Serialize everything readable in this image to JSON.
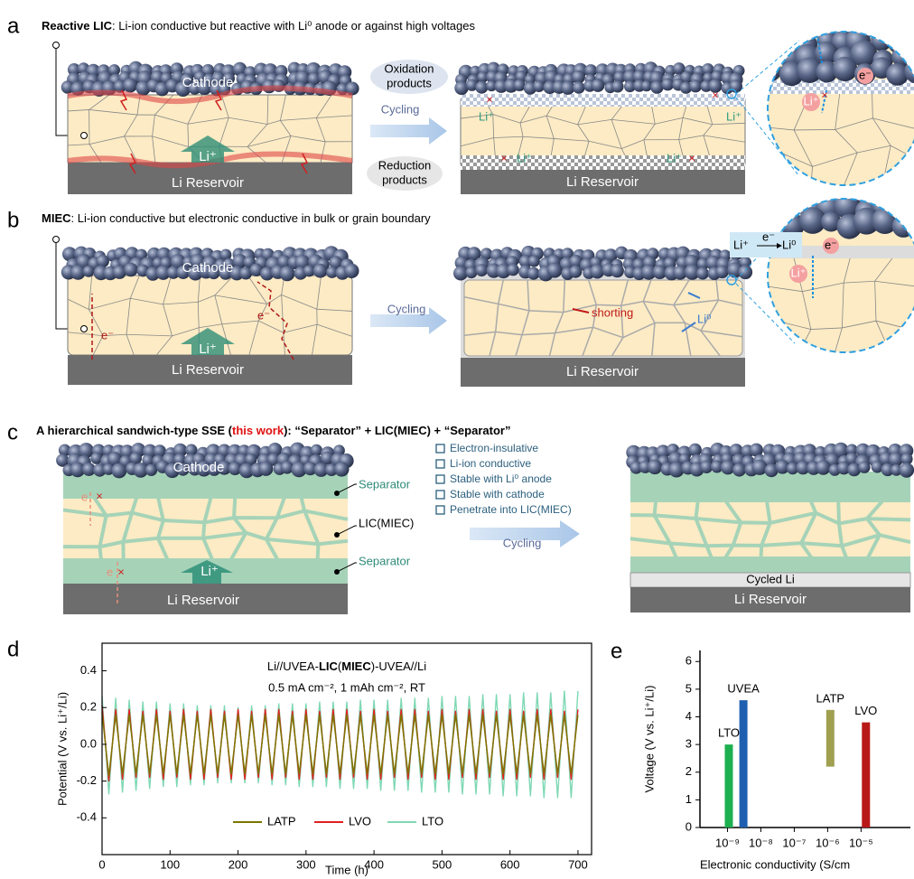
{
  "panel_a": {
    "label": "a",
    "title_bold": "Reactive LIC",
    "title_rest": ": Li-ion conductive but reactive with Li⁰ anode or against high voltages",
    "cathode": "Cathode",
    "li_ion": "Li⁺",
    "reservoir": "Li Reservoir",
    "oxidation": [
      "Oxidation",
      "products"
    ],
    "reduction": [
      "Reduction",
      "products"
    ],
    "cycling": "Cycling",
    "li_ion_labels": [
      "Li⁺",
      "Li⁺",
      "Li⁺",
      "Li⁺"
    ],
    "reservoir_after": "Li Reservoir",
    "zoom_electron": "e⁻",
    "zoom_li": "Li⁺"
  },
  "panel_b": {
    "label": "b",
    "title_bold": "MIEC",
    "title_rest": ": Li-ion conductive but electronic conductive in bulk or grain boundary",
    "cathode": "Cathode",
    "electrons": [
      "e⁻",
      "e⁻"
    ],
    "li_ion": "Li⁺",
    "reservoir": "Li Reservoir",
    "cycling": "Cycling",
    "shorting": "shorting",
    "li_metal": "Li⁰",
    "reservoir_after": "Li Reservoir",
    "reaction": [
      "Li⁺",
      "e⁻",
      "Li⁰"
    ],
    "zoom_electron": "e⁻",
    "zoom_li": "Li⁺"
  },
  "panel_c": {
    "label": "c",
    "title_parts": [
      "A hierarchical sandwich-type SSE (",
      "this work",
      "): “Separator” + LIC(MIEC) + “Separator”"
    ],
    "cathode": "Cathode",
    "separator_top": "Separator",
    "lic": "LIC(MIEC)",
    "separator_bottom": "Separator",
    "li_ion": "Li⁺",
    "reservoir": "Li Reservoir",
    "electrons": [
      "e",
      "e"
    ],
    "checklist": [
      "Electron-insulative",
      "Li-ion conductive",
      "Stable with Li⁰ anode",
      "Stable with cathode",
      "Penetrate into LIC(MIEC)"
    ],
    "cycling": "Cycling",
    "cycled_li": "Cycled Li",
    "reservoir_after": "Li Reservoir"
  },
  "chart_data": [
    {
      "label": "d",
      "type": "line",
      "annotation_parts": [
        {
          "text": "Li//UVEA-",
          "bold": false
        },
        {
          "text": "LIC",
          "bold": true
        },
        {
          "text": "(",
          "bold": false
        },
        {
          "text": "MIEC",
          "bold": true
        },
        {
          "text": ")-UVEA//Li",
          "bold": false
        }
      ],
      "subtitle": "0.5 mA cm⁻², 1 mAh cm⁻², RT",
      "xlabel": "Time (h)",
      "ylabel": "Potential (V vs. Li⁺/Li)",
      "x": [
        0,
        10,
        20,
        30,
        40,
        50,
        60,
        70,
        80,
        90,
        100,
        110,
        120,
        130,
        140,
        150,
        160,
        170,
        180,
        190,
        200,
        210,
        220,
        230,
        240,
        250,
        260,
        270,
        280,
        290,
        300,
        310,
        320,
        330,
        340,
        350,
        360,
        370,
        380,
        390,
        400,
        410,
        420,
        430,
        440,
        450,
        460,
        470,
        480,
        490,
        500,
        510,
        520,
        530,
        540,
        550,
        560,
        570,
        580,
        590,
        600,
        610,
        620,
        630,
        640,
        650,
        660,
        670,
        680,
        690,
        700
      ],
      "series": [
        {
          "name": "LATP",
          "color": "#7a7600",
          "values": [
            0.17,
            -0.17,
            0.16,
            -0.16,
            0.16,
            -0.16,
            0.16,
            -0.16,
            0.16,
            -0.16,
            0.16,
            -0.16,
            0.16,
            -0.16,
            0.16,
            -0.16,
            0.16,
            -0.16,
            0.16,
            -0.16,
            0.16,
            -0.16,
            0.16,
            -0.16,
            0.16,
            -0.16,
            0.16,
            -0.16,
            0.16,
            -0.16,
            0.16,
            -0.16,
            0.16,
            -0.16,
            0.16,
            -0.16,
            0.16,
            -0.16,
            0.16,
            -0.16,
            0.16,
            -0.16,
            0.16,
            -0.16,
            0.16,
            -0.16,
            0.16,
            -0.16,
            0.16,
            -0.16,
            0.16,
            -0.16,
            0.16,
            -0.16,
            0.16,
            -0.16,
            0.16,
            -0.16,
            0.16,
            -0.16,
            0.16,
            -0.16,
            0.16,
            -0.16,
            0.16,
            -0.16,
            0.16,
            -0.16,
            0.16,
            -0.16,
            0.16
          ]
        },
        {
          "name": "LVO",
          "color": "#e02020",
          "values": [
            0.21,
            -0.2,
            0.19,
            -0.19,
            0.19,
            -0.18,
            0.18,
            -0.18,
            0.19,
            -0.19,
            0.18,
            -0.18,
            0.19,
            -0.19,
            0.18,
            -0.19,
            0.19,
            -0.18,
            0.18,
            -0.19,
            0.19,
            -0.19,
            0.18,
            -0.18,
            0.19,
            -0.19,
            0.19,
            -0.18,
            0.18,
            -0.19,
            0.19,
            -0.19,
            0.18,
            -0.18,
            0.19,
            -0.19,
            0.19,
            -0.18,
            0.18,
            -0.19,
            0.19,
            -0.19,
            0.18,
            -0.18,
            0.19,
            -0.19,
            0.19,
            -0.18,
            0.18,
            -0.19,
            0.19,
            -0.19,
            0.18,
            -0.18,
            0.19,
            -0.19,
            0.19,
            -0.18,
            0.18,
            -0.19,
            0.19,
            -0.19,
            0.18,
            -0.18,
            0.19,
            -0.19,
            0.19,
            -0.18,
            0.18,
            -0.19,
            0.19
          ]
        },
        {
          "name": "LTO",
          "color": "#7fd8b4",
          "values": [
            0.26,
            -0.27,
            0.25,
            -0.26,
            0.24,
            -0.25,
            0.23,
            -0.24,
            0.23,
            -0.23,
            0.22,
            -0.23,
            0.22,
            -0.22,
            0.21,
            -0.22,
            0.21,
            -0.21,
            0.21,
            -0.21,
            0.2,
            -0.21,
            0.21,
            -0.21,
            0.21,
            -0.22,
            0.22,
            -0.22,
            0.22,
            -0.23,
            0.22,
            -0.23,
            0.23,
            -0.23,
            0.23,
            -0.24,
            0.23,
            -0.24,
            0.24,
            -0.24,
            0.24,
            -0.25,
            0.24,
            -0.25,
            0.25,
            -0.25,
            0.25,
            -0.26,
            0.25,
            -0.26,
            0.26,
            -0.26,
            0.26,
            -0.27,
            0.26,
            -0.27,
            0.27,
            -0.27,
            0.27,
            -0.28,
            0.27,
            -0.28,
            0.28,
            -0.28,
            0.28,
            -0.29,
            0.28,
            -0.29,
            0.29,
            -0.29,
            0.29
          ]
        }
      ],
      "xlim": [
        0,
        720
      ],
      "ylim": [
        -0.6,
        0.55
      ],
      "xticks": [
        0,
        100,
        200,
        300,
        400,
        500,
        600,
        700
      ],
      "yticks": [
        -0.4,
        -0.2,
        {
          "value": 0,
          "label": "0.0"
        },
        0.2,
        0.4
      ],
      "legend": "lower center"
    },
    {
      "label": "e",
      "type": "floating_bar",
      "xlabel": "Electronic conductivity (S/cm",
      "ylabel": "Voltage (V vs. Li⁺/Li)",
      "categories": [
        "LTO",
        "UVEA",
        "LATP",
        "LVO"
      ],
      "x": [
        1.1e-09,
        3e-09,
        1.2e-06,
        1.4e-05
      ],
      "low": [
        0,
        0,
        2.2,
        0
      ],
      "high": [
        3,
        4.6,
        4.25,
        3.8
      ],
      "colors": [
        "#1eb050",
        "#1f5fb0",
        "#a0a050",
        "#b81818"
      ],
      "xscale": "log",
      "xlim": [
        1.5e-10,
        0.0003
      ],
      "ylim": [
        0,
        6.4
      ],
      "xticks": [
        {
          "value": 1e-09,
          "label": "10⁻⁹"
        },
        {
          "value": 1e-08,
          "label": "10⁻⁸"
        },
        {
          "value": 1e-07,
          "label": "10⁻⁷"
        },
        {
          "value": 1e-06,
          "label": "10⁻⁶"
        },
        {
          "value": 1e-05,
          "label": "10⁻⁵"
        }
      ],
      "yticks": [
        0,
        1,
        2,
        3,
        4,
        5,
        6
      ]
    }
  ]
}
